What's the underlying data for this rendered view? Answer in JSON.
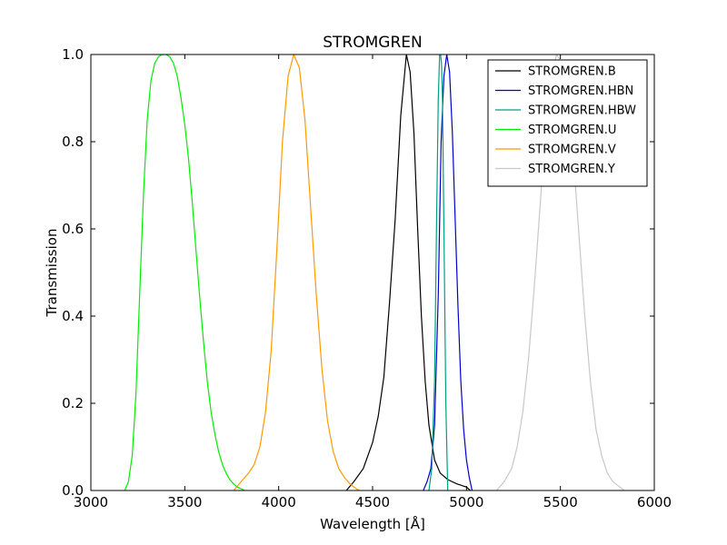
{
  "chart_data": {
    "type": "line",
    "title": "STROMGREN",
    "xlabel": "Wavelength [Å]",
    "ylabel": "Transmission",
    "xlim": [
      3000,
      6000
    ],
    "ylim": [
      0,
      1.0
    ],
    "xticks": [
      3000,
      3500,
      4000,
      4500,
      5000,
      5500,
      6000
    ],
    "xtick_labels": [
      "3000",
      "3500",
      "4000",
      "4500",
      "5000",
      "5500",
      "6000"
    ],
    "yticks": [
      0,
      0.2,
      0.4,
      0.6,
      0.8,
      1.0
    ],
    "ytick_labels": [
      "0.0",
      "0.2",
      "0.4",
      "0.6",
      "0.8",
      "1.0"
    ],
    "grid": false,
    "legend_position": "top-right",
    "series": [
      {
        "name": "STROMGREN.B",
        "color": "#000000",
        "x": [
          4360,
          4400,
          4450,
          4500,
          4530,
          4560,
          4590,
          4620,
          4650,
          4680,
          4700,
          4720,
          4740,
          4760,
          4780,
          4800,
          4830,
          4860,
          4900,
          4950,
          5000,
          5020
        ],
        "y": [
          0.0,
          0.02,
          0.05,
          0.11,
          0.17,
          0.26,
          0.43,
          0.62,
          0.86,
          1.0,
          0.96,
          0.82,
          0.6,
          0.4,
          0.25,
          0.15,
          0.07,
          0.04,
          0.025,
          0.015,
          0.008,
          0.0
        ]
      },
      {
        "name": "STROMGREN.HBN",
        "color": "#0000cc",
        "x": [
          4770,
          4790,
          4810,
          4830,
          4850,
          4865,
          4880,
          4895,
          4910,
          4925,
          4940,
          4955,
          4970,
          4985,
          5000,
          5015,
          5030
        ],
        "y": [
          0.0,
          0.02,
          0.05,
          0.15,
          0.45,
          0.8,
          0.95,
          1.0,
          0.96,
          0.82,
          0.62,
          0.42,
          0.25,
          0.14,
          0.07,
          0.03,
          0.0
        ]
      },
      {
        "name": "STROMGREN.HBW",
        "color": "#00a080",
        "x": [
          4800,
          4815,
          4830,
          4840,
          4850,
          4857,
          4862,
          4867,
          4872,
          4880,
          4890,
          4900
        ],
        "y": [
          0.0,
          0.05,
          0.25,
          0.6,
          0.9,
          1.0,
          1.0,
          0.98,
          0.9,
          0.6,
          0.2,
          0.0
        ]
      },
      {
        "name": "STROMGREN.U",
        "color": "#00ee00",
        "x": [
          3180,
          3200,
          3220,
          3240,
          3260,
          3280,
          3300,
          3320,
          3340,
          3360,
          3380,
          3400,
          3420,
          3440,
          3460,
          3480,
          3500,
          3520,
          3540,
          3560,
          3580,
          3600,
          3620,
          3640,
          3660,
          3680,
          3700,
          3720,
          3740,
          3760,
          3780,
          3800,
          3820
        ],
        "y": [
          0.0,
          0.02,
          0.08,
          0.22,
          0.45,
          0.68,
          0.85,
          0.94,
          0.98,
          0.995,
          1.0,
          1.0,
          0.995,
          0.98,
          0.95,
          0.9,
          0.84,
          0.76,
          0.66,
          0.55,
          0.44,
          0.34,
          0.25,
          0.18,
          0.13,
          0.09,
          0.06,
          0.04,
          0.025,
          0.015,
          0.008,
          0.004,
          0.0
        ]
      },
      {
        "name": "STROMGREN.V",
        "color": "#ff9900",
        "x": [
          3760,
          3800,
          3840,
          3870,
          3900,
          3930,
          3960,
          3990,
          4020,
          4050,
          4080,
          4110,
          4140,
          4170,
          4200,
          4230,
          4260,
          4290,
          4320,
          4350,
          4380,
          4410,
          4430
        ],
        "y": [
          0.0,
          0.02,
          0.04,
          0.06,
          0.1,
          0.18,
          0.32,
          0.55,
          0.8,
          0.95,
          1.0,
          0.97,
          0.85,
          0.65,
          0.45,
          0.28,
          0.16,
          0.09,
          0.05,
          0.03,
          0.015,
          0.005,
          0.0
        ]
      },
      {
        "name": "STROMGREN.Y",
        "color": "#c8c8c8",
        "x": [
          5160,
          5200,
          5240,
          5270,
          5300,
          5330,
          5360,
          5390,
          5420,
          5450,
          5480,
          5510,
          5540,
          5570,
          5600,
          5630,
          5660,
          5690,
          5720,
          5750,
          5780,
          5810,
          5840
        ],
        "y": [
          0.0,
          0.02,
          0.05,
          0.1,
          0.18,
          0.3,
          0.46,
          0.64,
          0.82,
          0.95,
          1.0,
          0.98,
          0.9,
          0.76,
          0.58,
          0.4,
          0.25,
          0.14,
          0.08,
          0.04,
          0.02,
          0.01,
          0.0
        ]
      }
    ]
  }
}
